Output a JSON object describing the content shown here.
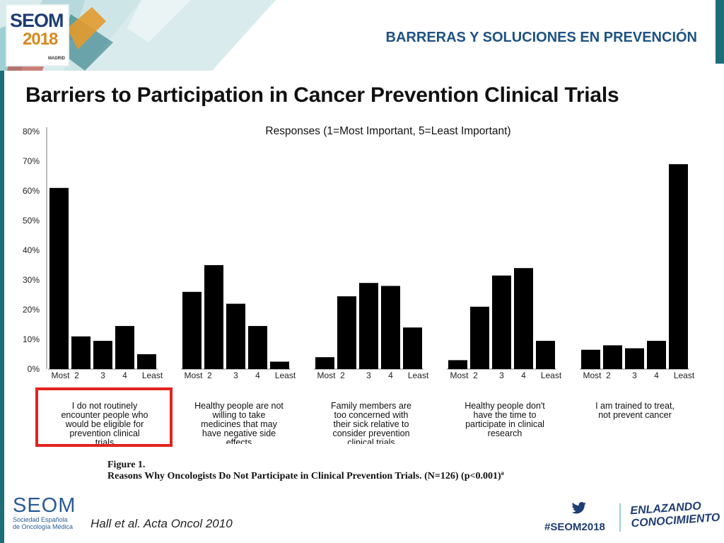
{
  "header": {
    "logo_line1": "SEOM",
    "logo_line2": "2018",
    "logo_city": "MADRID",
    "section_title": "BARRERAS Y SOLUCIONES EN PREVENCIÓN"
  },
  "slide_title": "Barriers to Participation in Cancer Prevention Clinical Trials",
  "chart_data": {
    "type": "bar",
    "title": "Responses (1=Most Important, 5=Least Important)",
    "categories": [
      "Most",
      "2",
      "3",
      "4",
      "Least"
    ],
    "y_ticks": [
      "0%",
      "10%",
      "20%",
      "30%",
      "40%",
      "50%",
      "60%",
      "70%",
      "80%"
    ],
    "ylim": [
      0,
      80
    ],
    "grid": false,
    "bar_color": "#000000",
    "groups": [
      {
        "label": "I do not routinely\nencounter people who\nwould be eligible for\nprevention clinical\ntrials",
        "values": [
          61,
          11,
          9.5,
          14.5,
          5
        ],
        "highlighted": true
      },
      {
        "label": "Healthy people are not\nwilling to take\nmedicines that may\nhave negative side\neffects",
        "values": [
          26,
          35,
          22,
          14.5,
          2.5
        ],
        "highlighted": false
      },
      {
        "label": "Family members are\ntoo concerned with\ntheir sick relative to\nconsider prevention\nclinical trials",
        "values": [
          4,
          24.5,
          29,
          28,
          14
        ],
        "highlighted": false
      },
      {
        "label": "Healthy people don't\nhave the time to\nparticipate in clinical\nresearch",
        "values": [
          3,
          21,
          31.5,
          34,
          9.5
        ],
        "highlighted": false
      },
      {
        "label": "I am trained to treat,\nnot prevent cancer",
        "values": [
          6.5,
          8,
          7,
          9.5,
          69
        ],
        "highlighted": false
      }
    ]
  },
  "figure": {
    "label": "Figure 1.",
    "caption": "Reasons Why Oncologists Do Not Participate in Clinical Prevention Trials. (N=126) (p<0.001)ª"
  },
  "citation": "Hall et al. Acta Oncol 2010",
  "footer": {
    "org_name": "SEOM",
    "org_sub1": "Sociedad Española",
    "org_sub2": "de Oncología Médica",
    "hashtag": "#SEOM2018",
    "tagline_line1": "ENLAZANDO",
    "tagline_line2": "CONOCIMIENTO",
    "accent_color": "#1c6e78"
  }
}
